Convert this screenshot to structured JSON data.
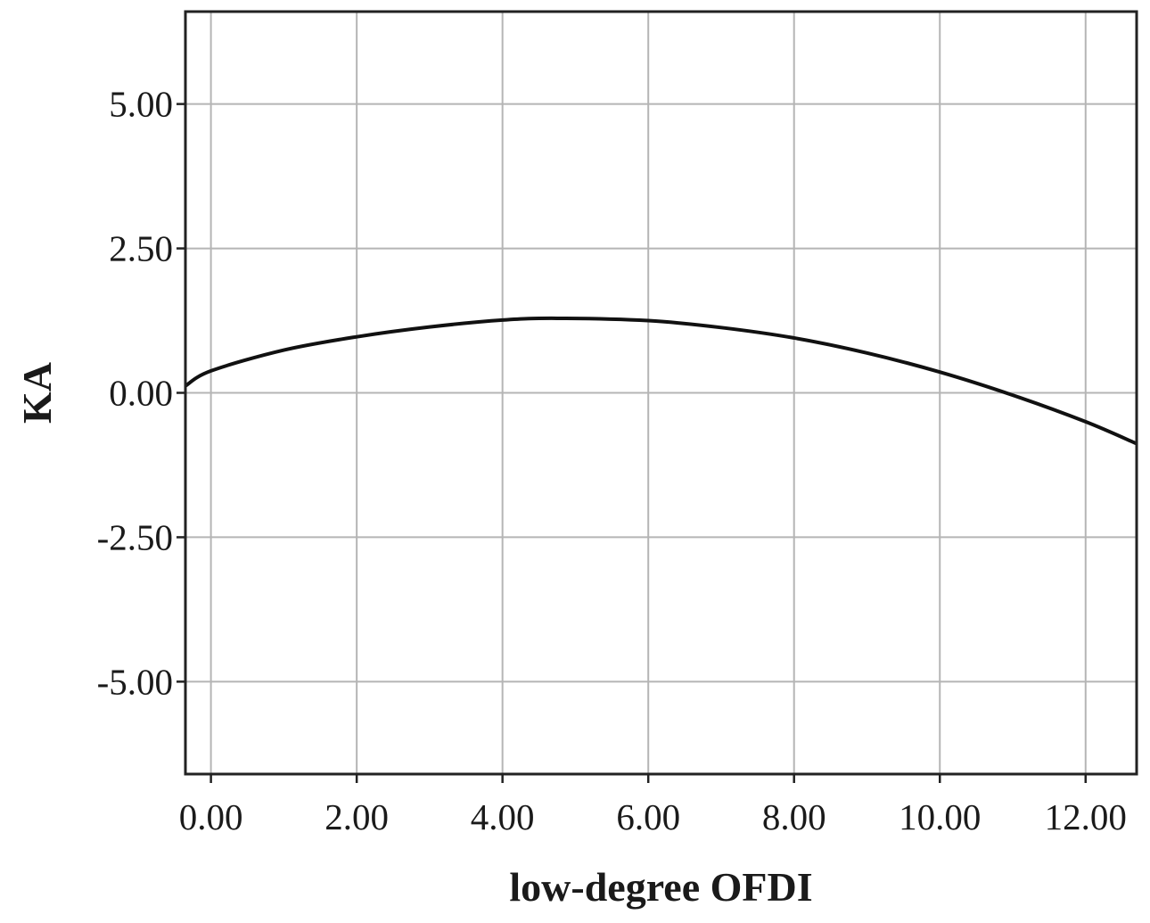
{
  "chart_data": {
    "type": "line",
    "title": "",
    "xlabel": "low-degree OFDI",
    "ylabel": "KA",
    "xlim": [
      -0.35,
      12.7
    ],
    "ylim": [
      -6.6,
      6.6
    ],
    "x_ticks": [
      0,
      2,
      4,
      6,
      8,
      10,
      12
    ],
    "x_tick_labels": [
      "0.00",
      "2.00",
      "4.00",
      "6.00",
      "8.00",
      "10.00",
      "12.00"
    ],
    "y_ticks": [
      5,
      2.5,
      0,
      -2.5,
      -5
    ],
    "y_tick_labels": [
      "5.00",
      "2.50",
      "0.00",
      "-2.50",
      "-5.00"
    ],
    "grid": true,
    "legend": "none",
    "series": [
      {
        "color": "#111111",
        "x": [
          -0.35,
          0,
          1,
          2,
          3,
          4,
          4.75,
          6,
          7,
          8,
          9,
          10,
          11,
          12,
          12.7
        ],
        "y": [
          0.12,
          0.38,
          0.74,
          0.97,
          1.14,
          1.26,
          1.29,
          1.25,
          1.13,
          0.95,
          0.69,
          0.36,
          -0.04,
          -0.5,
          -0.88
        ]
      }
    ]
  }
}
